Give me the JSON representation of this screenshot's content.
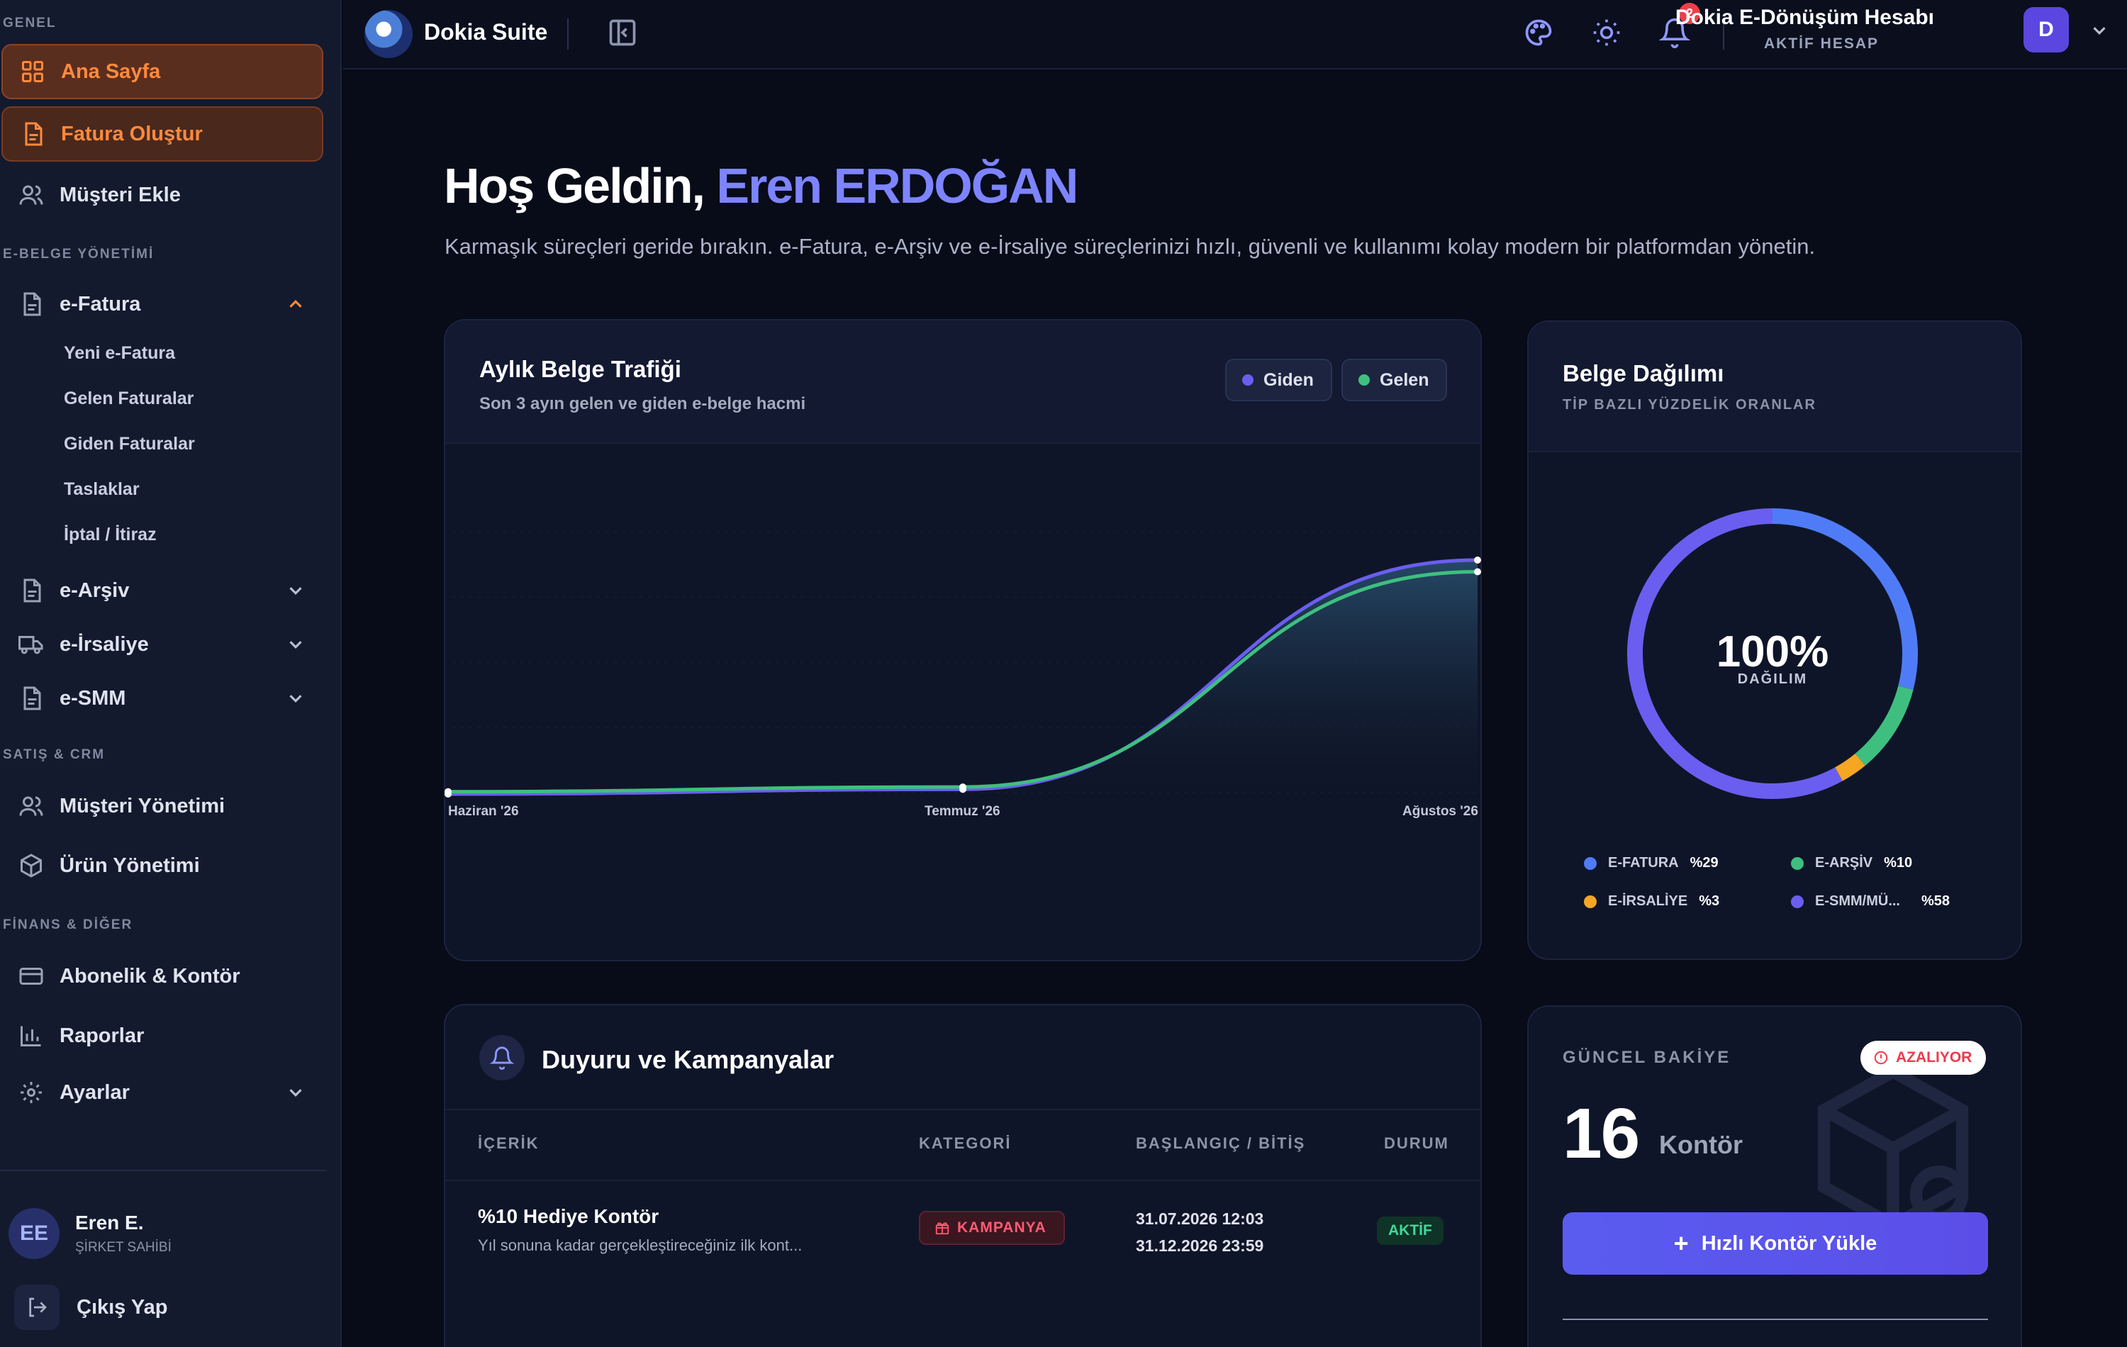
{
  "sidebar": {
    "sections": {
      "genel": "GENEL",
      "ebelge": "E-BELGE YÖNETİMİ",
      "satis": "SATIŞ & CRM",
      "finans": "FİNANS & DİĞER"
    },
    "items": {
      "ana_sayfa": "Ana Sayfa",
      "fatura_olustur": "Fatura Oluştur",
      "musteri_ekle": "Müşteri Ekle",
      "efatura": "e-Fatura",
      "earsiv": "e-Arşiv",
      "eirsaliye": "e-İrsaliye",
      "esmm": "e-SMM",
      "musteri_yonetimi": "Müşteri Yönetimi",
      "urun_yonetimi": "Ürün Yönetimi",
      "abonelik": "Abonelik & Kontör",
      "raporlar": "Raporlar",
      "ayarlar": "Ayarlar"
    },
    "efatura_sub": [
      "Yeni e-Fatura",
      "Gelen Faturalar",
      "Giden Faturalar",
      "Taslaklar",
      "İptal / İtiraz"
    ],
    "user": {
      "initials": "EE",
      "name": "Eren E.",
      "role": "ŞİRKET SAHİBİ"
    },
    "logout": "Çıkış Yap"
  },
  "topbar": {
    "brand": "Dokia Suite",
    "notifications": "2",
    "account_title": "Dokia E-Dönüşüm Hesabı",
    "account_sub": "AKTİF HESAP",
    "account_initial": "D"
  },
  "welcome": {
    "greeting": "Hoş Geldin, ",
    "name": "Eren ERDOĞAN",
    "intro": "Karmaşık süreçleri geride bırakın. e-Fatura, e-Arşiv ve e-İrsaliye süreçlerinizi hızlı, güvenli ve kullanımı kolay modern bir platformdan yönetin."
  },
  "traffic": {
    "title": "Aylık Belge Trafiği",
    "subtitle": "Son 3 ayın gelen ve giden e-belge hacmi"
  },
  "distribution": {
    "title": "Belge Dağılımı",
    "subtitle": "TİP BAZLI YÜZDELİK ORANLAR",
    "center_value": "100%",
    "center_label": "DAĞILIM",
    "legend": [
      {
        "label": "E-FATURA",
        "pct": "%29",
        "color": "#4f7cf6"
      },
      {
        "label": "E-ARŞİV",
        "pct": "%10",
        "color": "#3fbf7f"
      },
      {
        "label": "E-İRSALİYE",
        "pct": "%3",
        "color": "#f5a623"
      },
      {
        "label": "E-SMM/MÜ...",
        "pct": "%58",
        "color": "#6a5ef0"
      }
    ]
  },
  "announcements": {
    "title": "Duyuru ve Kampanyalar",
    "headers": {
      "content": "İÇERİK",
      "category": "KATEGORİ",
      "dates": "BAŞLANGIÇ / BİTİŞ",
      "status": "DURUM"
    },
    "rows": [
      {
        "title": "%10 Hediye Kontör",
        "desc": "Yıl sonuna kadar gerçekleştireceğiniz ilk kont...",
        "category": "KAMPANYA",
        "start": "31.07.2026 12:03",
        "end": "31.12.2026 23:59",
        "status": "AKTİF"
      }
    ]
  },
  "balance": {
    "label": "GÜNCEL BAKİYE",
    "trend": "AZALIYOR",
    "value": "16",
    "unit": "Kontör",
    "cta": "Hızlı Kontör Yükle"
  },
  "chart_data": [
    {
      "type": "area",
      "categories": [
        "Haziran '26",
        "Temmuz '26",
        "Ağustos '26"
      ],
      "series": [
        {
          "name": "Giden",
          "color": "#6a5ef0",
          "values": [
            0,
            2,
            100
          ]
        },
        {
          "name": "Gelen",
          "color": "#3fbf7f",
          "values": [
            1,
            3,
            95
          ]
        }
      ],
      "ylim": [
        0,
        100
      ],
      "grid": true,
      "legend": "top-right"
    },
    {
      "type": "pie",
      "style": "donut",
      "labels": [
        "E-FATURA",
        "E-ARŞİV",
        "E-İRSALİYE",
        "E-SMM/MÜ..."
      ],
      "values": [
        29,
        10,
        3,
        58
      ],
      "colors": [
        "#4f7cf6",
        "#3fbf7f",
        "#f5a623",
        "#6a5ef0"
      ]
    }
  ]
}
